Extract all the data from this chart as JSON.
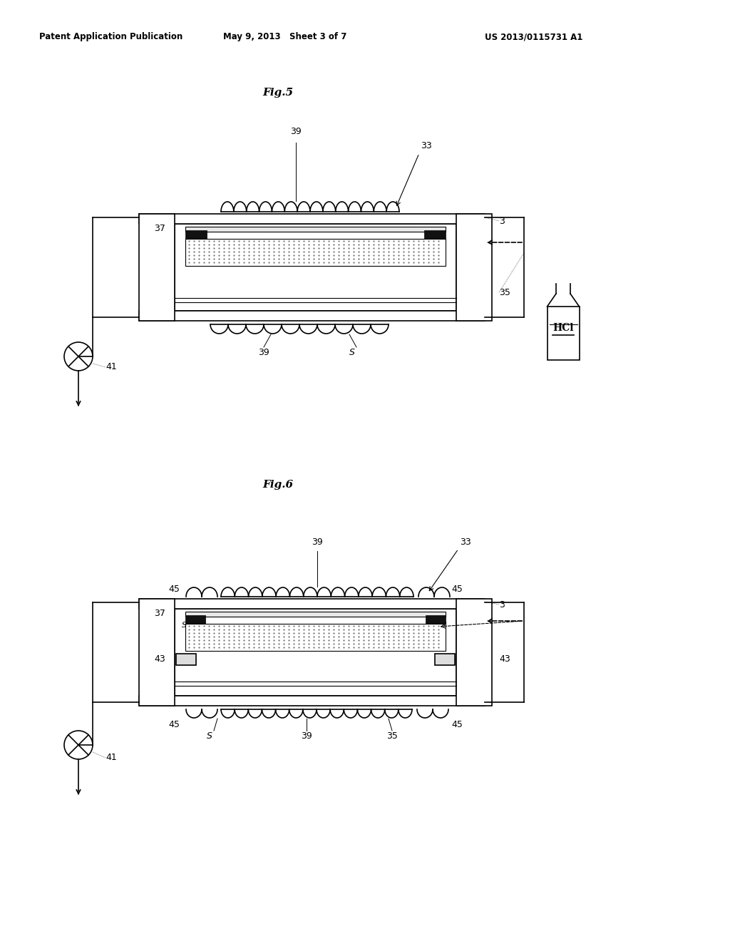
{
  "bg_color": "#ffffff",
  "header_left": "Patent Application Publication",
  "header_mid": "May 9, 2013   Sheet 3 of 7",
  "header_right": "US 2013/0115731 A1",
  "fig5_title": "Fig.5",
  "fig6_title": "Fig.6",
  "lc": "#000000",
  "lw": 1.2
}
